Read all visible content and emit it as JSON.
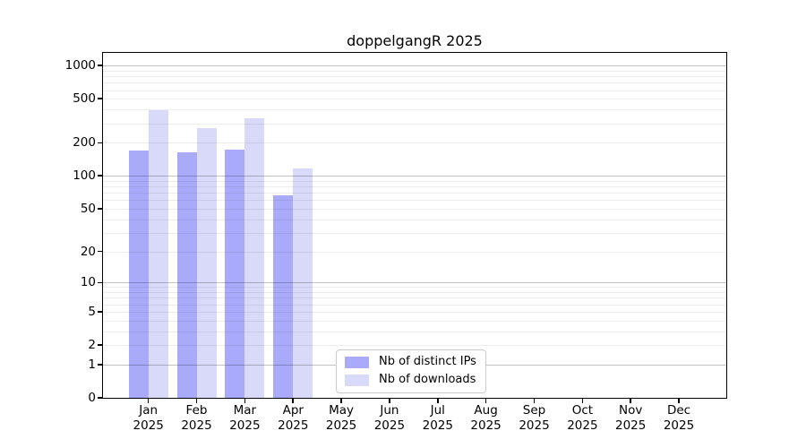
{
  "chart_data": {
    "type": "bar",
    "title": "doppelgangR 2025",
    "xlabel": "",
    "ylabel": "",
    "categories": [
      "Jan",
      "Feb",
      "Mar",
      "Apr",
      "May",
      "Jun",
      "Jul",
      "Aug",
      "Sep",
      "Oct",
      "Nov",
      "Dec"
    ],
    "x_tick_year": "2025",
    "series": [
      {
        "name": "Nb of distinct IPs",
        "color": "#aaaafa",
        "values": [
          170,
          163,
          172,
          67,
          0,
          0,
          0,
          0,
          0,
          0,
          0,
          0
        ]
      },
      {
        "name": "Nb of downloads",
        "color": "#d9d9fa",
        "values": [
          395,
          270,
          332,
          116,
          0,
          0,
          0,
          0,
          0,
          0,
          0,
          0
        ]
      }
    ],
    "y_axis": {
      "scale": "log1p",
      "tick_labels": [
        0,
        1,
        2,
        5,
        10,
        20,
        50,
        100,
        200,
        500,
        1000
      ],
      "major_gridlines": [
        1,
        10,
        100,
        1000
      ],
      "ylim": [
        0,
        1300
      ],
      "grid": true
    },
    "legend": {
      "position": "lower-center",
      "entries": [
        "Nb of distinct IPs",
        "Nb of downloads"
      ]
    }
  }
}
